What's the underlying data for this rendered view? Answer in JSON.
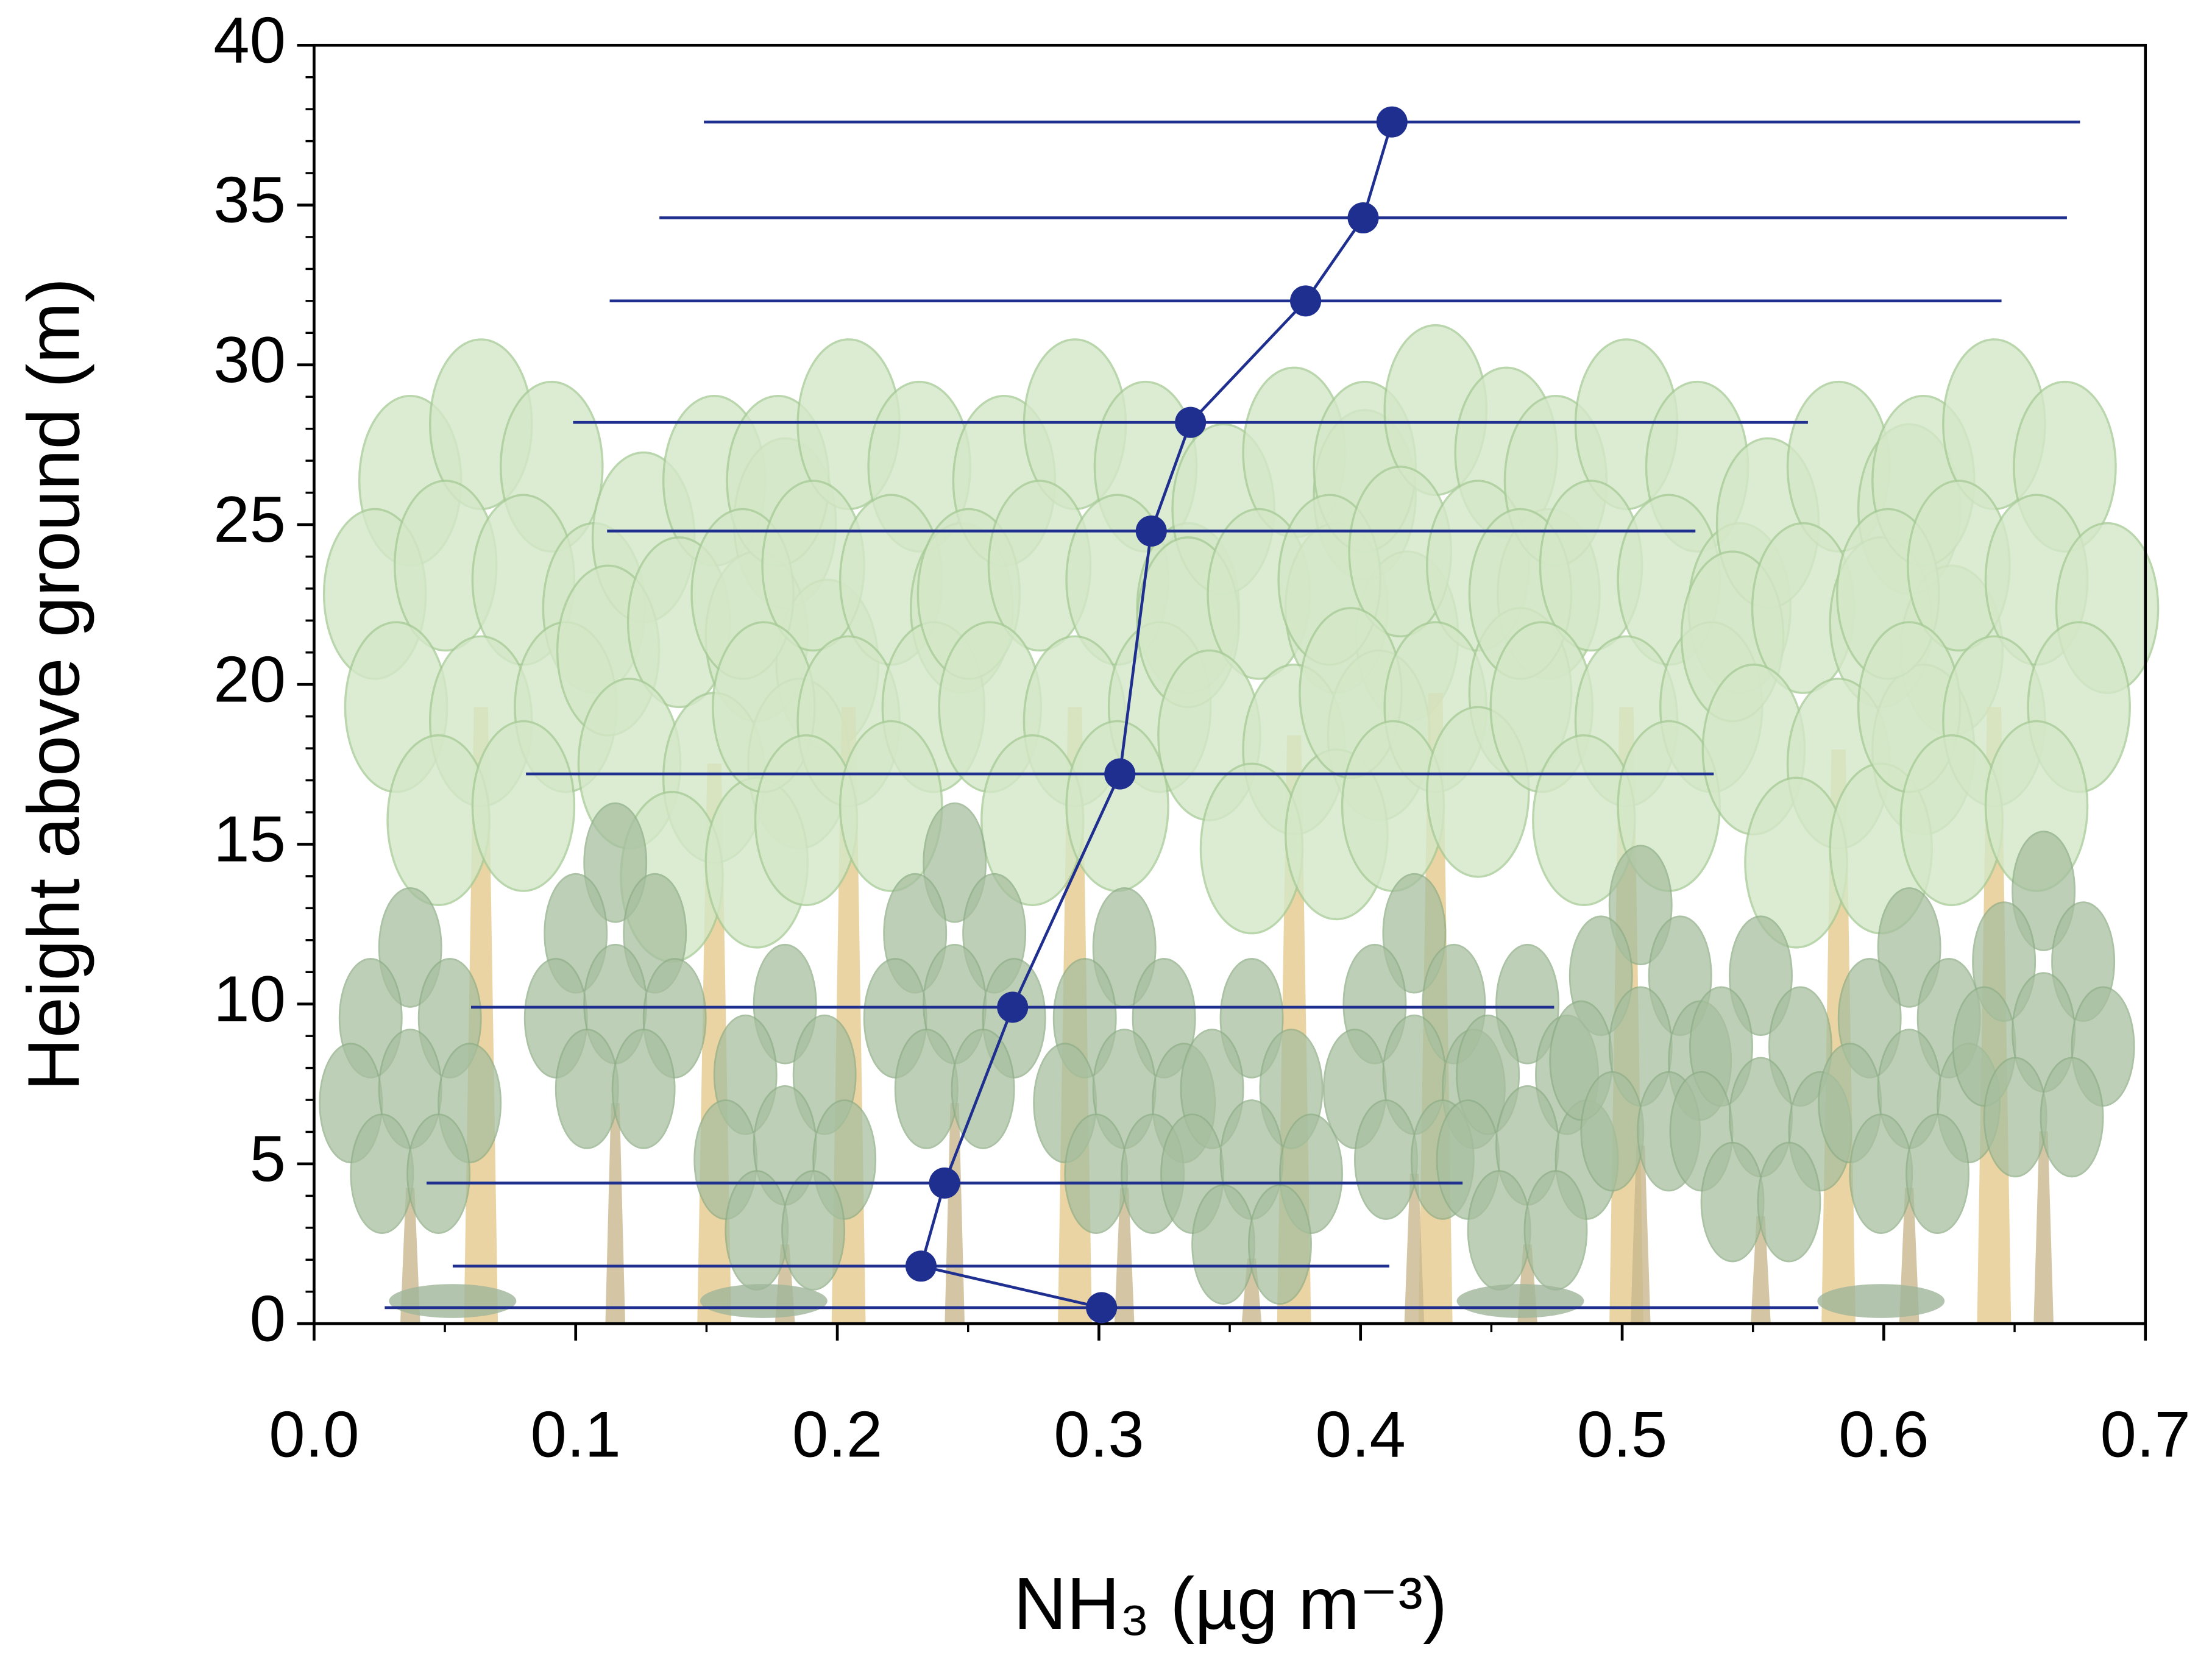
{
  "chart_data": {
    "type": "line",
    "xlabel": "NH₃ (µg m⁻³)",
    "ylabel": "Height above ground (m)",
    "xlim": [
      0,
      0.7
    ],
    "ylim": [
      0,
      40
    ],
    "xticks": [
      {
        "value": 0,
        "label": "0.0"
      },
      0.1,
      0.2,
      0.3,
      0.4,
      0.5,
      0.6,
      0.7
    ],
    "yticks": [
      0,
      5,
      10,
      15,
      20,
      25,
      30,
      35,
      40
    ],
    "series": [
      {
        "color": "#1f2f8f",
        "x": [
          0.412,
          0.401,
          0.379,
          0.335,
          0.32,
          0.308,
          0.267,
          0.241,
          0.232,
          0.301
        ],
        "values": [
          37.6,
          34.6,
          32.0,
          28.2,
          24.8,
          17.2,
          9.9,
          4.4,
          1.8,
          0.5
        ],
        "xerr": [
          0.263,
          0.269,
          0.266,
          0.236,
          0.208,
          0.227,
          0.207,
          0.198,
          0.179,
          0.274
        ]
      }
    ]
  }
}
